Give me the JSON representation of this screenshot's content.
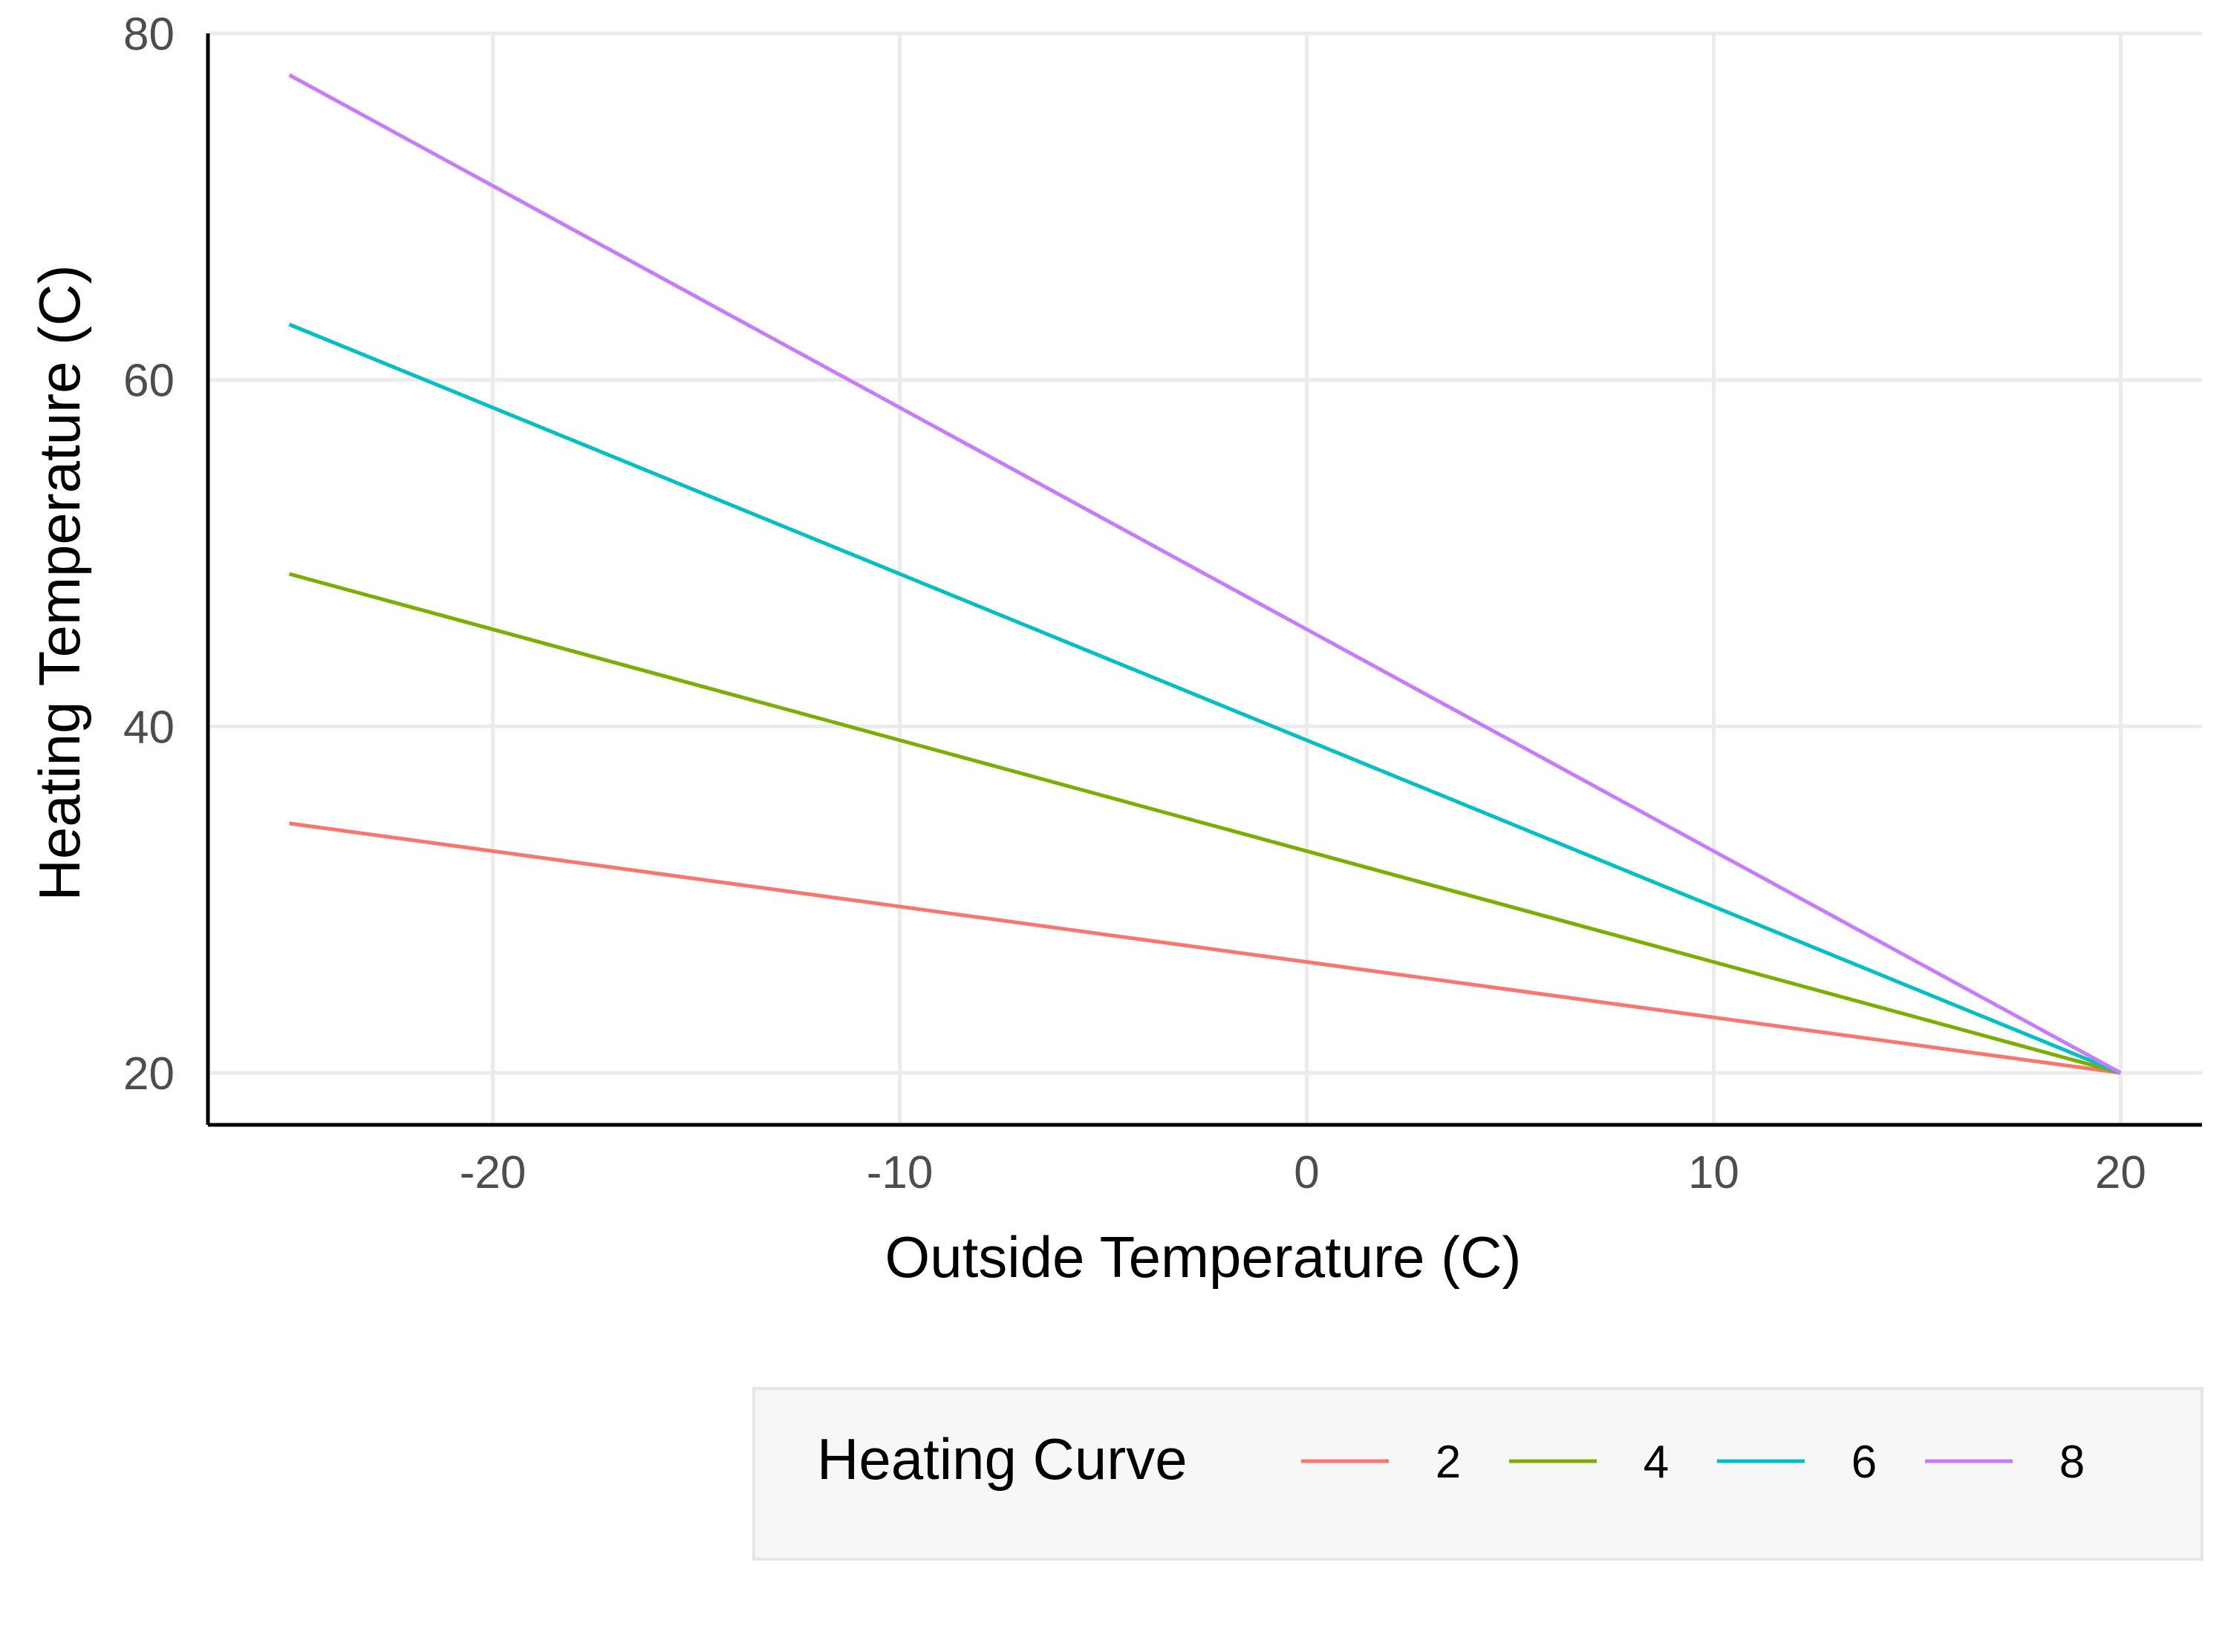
{
  "chart_data": {
    "type": "line",
    "xlabel": "Outside Temperature (C)",
    "ylabel": "Heating Temperature (C)",
    "xlim": [
      -27,
      22
    ],
    "ylim": [
      17,
      80
    ],
    "xticks": [
      -20,
      -10,
      0,
      10,
      20
    ],
    "yticks": [
      20,
      40,
      60,
      80
    ],
    "xtick_labels": [
      "-20",
      "-10",
      "0",
      "10",
      "20"
    ],
    "ytick_labels": [
      "20",
      "40",
      "60",
      "80"
    ],
    "grid": true,
    "legend": {
      "title": "Heating Curve",
      "position": "bottom-right"
    },
    "series": [
      {
        "name": "2",
        "color": "#F8766D",
        "x": [
          -25,
          20
        ],
        "y": [
          34.4,
          20
        ]
      },
      {
        "name": "4",
        "color": "#7CAE00",
        "x": [
          -25,
          20
        ],
        "y": [
          48.8,
          20
        ]
      },
      {
        "name": "6",
        "color": "#00BFC4",
        "x": [
          -25,
          20
        ],
        "y": [
          63.2,
          20
        ]
      },
      {
        "name": "8",
        "color": "#C77CFF",
        "x": [
          -25,
          20
        ],
        "y": [
          77.6,
          20
        ]
      }
    ]
  }
}
